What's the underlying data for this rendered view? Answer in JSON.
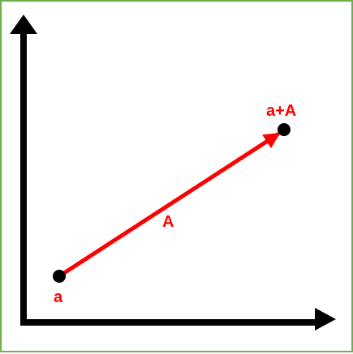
{
  "colors": {
    "border": "#6ab04c",
    "axes": "#000000",
    "vector": "#ff0000",
    "points": "#000000",
    "labels": "#ff0000"
  },
  "diagram": {
    "start_point_label": "a",
    "end_point_label": "a+A",
    "vector_label": "A"
  }
}
